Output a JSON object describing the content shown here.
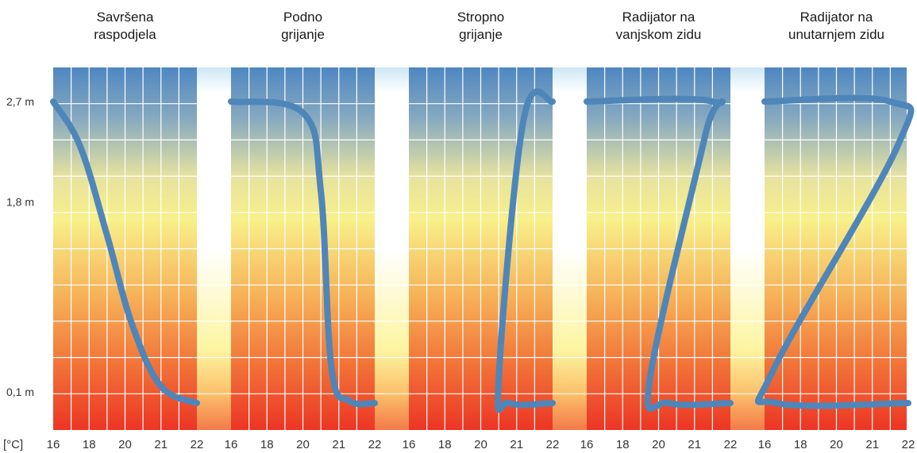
{
  "chart_data": {
    "type": "line",
    "x_unit_label": "[°C]",
    "y_tick_labels": [
      "2,7 m",
      "1,8 m",
      "0,1 m"
    ],
    "y_ticks_m": [
      2.7,
      1.8,
      0.1
    ],
    "x_ticks": [
      16,
      18,
      20,
      21,
      22
    ],
    "x_tick_labels": [
      "16",
      "18",
      "20",
      "21",
      "22"
    ],
    "grid": true,
    "background": "vertical temperature gradient, blue (top) to red (bottom)",
    "colors": {
      "line": "#4f86b9",
      "bg_top": "#4f87c1",
      "bg_mid": "#f8f08a",
      "bg_bottom": "#ec3524",
      "grid": "#ffffff"
    },
    "panels": [
      {
        "title": [
          "Savršena",
          "raspodjela"
        ],
        "points": [
          [
            16.0,
            2.7
          ],
          [
            17.5,
            2.3
          ],
          [
            19.0,
            1.5
          ],
          [
            20.2,
            0.7
          ],
          [
            21.0,
            0.15
          ],
          [
            22.0,
            0.0
          ]
        ]
      },
      {
        "title": [
          "Podno",
          "grijanje"
        ],
        "points": [
          [
            16.0,
            2.7
          ],
          [
            20.0,
            2.6
          ],
          [
            20.5,
            1.9
          ],
          [
            20.8,
            0.3
          ],
          [
            21.3,
            0.02
          ],
          [
            22.0,
            0.0
          ]
        ]
      },
      {
        "title": [
          "Stropno",
          "grijanje"
        ],
        "points": [
          [
            22.0,
            2.7
          ],
          [
            21.2,
            2.55
          ],
          [
            20.5,
            0.2
          ],
          [
            20.8,
            0.0
          ],
          [
            22.0,
            0.0
          ]
        ]
      },
      {
        "title": [
          "Radijator na",
          "vanjskom zidu"
        ],
        "points": [
          [
            16.0,
            2.7
          ],
          [
            21.5,
            2.7
          ],
          [
            21.3,
            2.4
          ],
          [
            19.5,
            0.2
          ],
          [
            20.3,
            0.0
          ],
          [
            22.0,
            0.0
          ]
        ]
      },
      {
        "title": [
          "Radijator na",
          "unutarnjem zidu"
        ],
        "points": [
          [
            16.0,
            2.7
          ],
          [
            21.5,
            2.7
          ],
          [
            21.7,
            2.3
          ],
          [
            16.5,
            0.3
          ],
          [
            16.7,
            0.0
          ],
          [
            22.0,
            0.0
          ]
        ]
      }
    ]
  }
}
